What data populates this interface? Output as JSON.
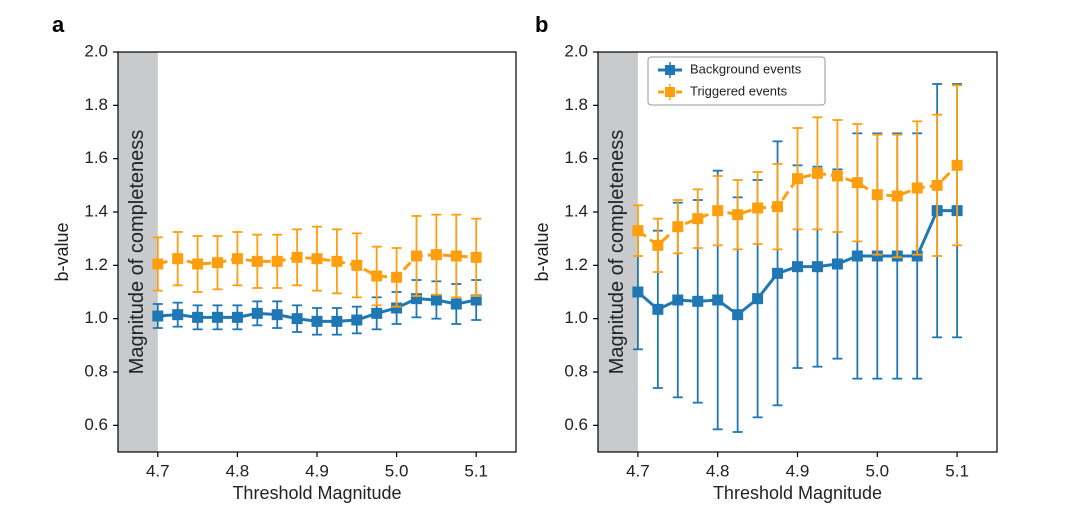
{
  "chart_data": [
    {
      "type": "line",
      "panel_letter": "a",
      "xlabel": "Threshold Magnitude",
      "ylabel": "b-value",
      "xlim": [
        4.65,
        5.15
      ],
      "ylim": [
        0.5,
        2.0
      ],
      "xticks": [
        "4.7",
        "4.8",
        "4.9",
        "5.0",
        "5.1"
      ],
      "yticks": [
        "0.6",
        "0.8",
        "1.0",
        "1.2",
        "1.4",
        "1.6",
        "1.8",
        "2.0"
      ],
      "shaded_region": {
        "label": "Magnitude of completeness",
        "x_range": [
          4.65,
          4.7
        ],
        "color": "#c9cacb"
      },
      "x": [
        4.7,
        4.725,
        4.75,
        4.775,
        4.8,
        4.825,
        4.85,
        4.875,
        4.9,
        4.925,
        4.95,
        4.975,
        5.0,
        5.025,
        5.05,
        5.075,
        5.1
      ],
      "series": [
        {
          "color": "#1f77b4",
          "linestyle": "solid",
          "y": [
            1.01,
            1.015,
            1.005,
            1.005,
            1.005,
            1.02,
            1.015,
            1.0,
            0.99,
            0.99,
            0.995,
            1.02,
            1.04,
            1.075,
            1.07,
            1.055,
            1.07
          ],
          "err": [
            0.045,
            0.045,
            0.045,
            0.045,
            0.045,
            0.045,
            0.05,
            0.05,
            0.05,
            0.05,
            0.05,
            0.06,
            0.06,
            0.07,
            0.07,
            0.075,
            0.075
          ]
        },
        {
          "color": "#ff9f0f",
          "linestyle": "dashed",
          "y": [
            1.205,
            1.225,
            1.205,
            1.21,
            1.225,
            1.215,
            1.215,
            1.23,
            1.225,
            1.215,
            1.2,
            1.16,
            1.155,
            1.235,
            1.24,
            1.235,
            1.23
          ],
          "err": [
            0.1,
            0.1,
            0.105,
            0.1,
            0.1,
            0.1,
            0.1,
            0.105,
            0.12,
            0.12,
            0.12,
            0.11,
            0.11,
            0.15,
            0.15,
            0.155,
            0.145
          ]
        }
      ]
    },
    {
      "type": "line",
      "panel_letter": "b",
      "xlabel": "Threshold Magnitude",
      "ylabel": "b-value",
      "xlim": [
        4.65,
        5.15
      ],
      "ylim": [
        0.5,
        2.0
      ],
      "xticks": [
        "4.7",
        "4.8",
        "4.9",
        "5.0",
        "5.1"
      ],
      "yticks": [
        "0.6",
        "0.8",
        "1.0",
        "1.2",
        "1.4",
        "1.6",
        "1.8",
        "2.0"
      ],
      "shaded_region": {
        "label": "Magnitude of completeness",
        "x_range": [
          4.65,
          4.7
        ],
        "color": "#c9cacb"
      },
      "legend_position": "upper-left",
      "x": [
        4.7,
        4.725,
        4.75,
        4.775,
        4.8,
        4.825,
        4.85,
        4.875,
        4.9,
        4.925,
        4.95,
        4.975,
        5.0,
        5.025,
        5.05,
        5.075,
        5.1
      ],
      "series": [
        {
          "name": "Background events",
          "color": "#1f77b4",
          "linestyle": "solid",
          "y": [
            1.1,
            1.035,
            1.07,
            1.065,
            1.07,
            1.015,
            1.075,
            1.17,
            1.195,
            1.195,
            1.205,
            1.235,
            1.235,
            1.235,
            1.235,
            1.405,
            1.405
          ],
          "err": [
            0.215,
            0.295,
            0.365,
            0.38,
            0.485,
            0.44,
            0.445,
            0.495,
            0.38,
            0.375,
            0.355,
            0.46,
            0.46,
            0.46,
            0.46,
            0.475,
            0.475
          ]
        },
        {
          "name": "Triggered events",
          "color": "#ff9f0f",
          "linestyle": "dashed",
          "y": [
            1.33,
            1.275,
            1.345,
            1.375,
            1.405,
            1.39,
            1.415,
            1.42,
            1.525,
            1.545,
            1.535,
            1.51,
            1.465,
            1.46,
            1.49,
            1.5,
            1.575
          ],
          "err": [
            0.095,
            0.1,
            0.1,
            0.11,
            0.13,
            0.13,
            0.135,
            0.16,
            0.19,
            0.21,
            0.21,
            0.22,
            0.225,
            0.23,
            0.25,
            0.265,
            0.3
          ]
        }
      ]
    }
  ]
}
